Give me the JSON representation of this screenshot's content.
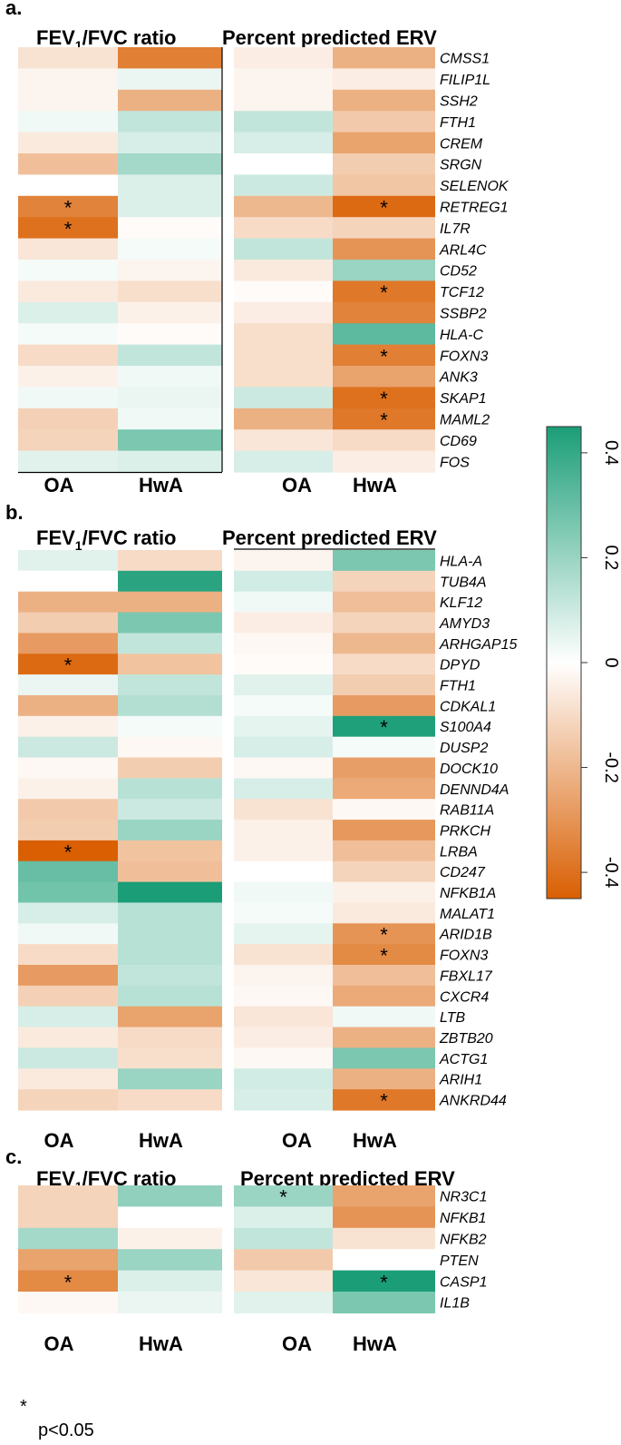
{
  "chart_data": {
    "type": "heatmap",
    "colorbar": {
      "min": -0.45,
      "max": 0.45,
      "ticks": [
        0.4,
        0.2,
        0,
        -0.2,
        -0.4
      ],
      "tick_labels": [
        "0.4",
        "0.2",
        "0",
        "-0.2",
        "-0.4"
      ],
      "neg_color": "#d95f02",
      "pos_color": "#1b9e77",
      "mid_color": "#ffffff"
    },
    "footnote": {
      "symbol": "*",
      "text": "p<0.05"
    },
    "panels": [
      {
        "label": "a.",
        "left_title": "FEV1/FVC ratio",
        "right_title": "Percent predicted ERV",
        "col_labels": [
          "OA",
          "HwA"
        ],
        "genes": [
          "CMSS1",
          "FILIP1L",
          "SSH2",
          "FTH1",
          "CREM",
          "SRGN",
          "SELENOK",
          "RETREG1",
          "IL7R",
          "ARL4C",
          "CD52",
          "TCF12",
          "SSBP2",
          "HLA-C",
          "FOXN3",
          "ANK3",
          "SKAP1",
          "MAML2",
          "CD69",
          "FOS"
        ],
        "fev_oa": [
          -0.08,
          -0.03,
          -0.03,
          0.03,
          -0.06,
          -0.18,
          0.0,
          -0.35,
          -0.4,
          -0.07,
          0.02,
          -0.06,
          0.07,
          0.02,
          -0.1,
          -0.04,
          0.03,
          -0.13,
          -0.12,
          0.06
        ],
        "fev_hwa": [
          -0.36,
          0.04,
          -0.22,
          0.12,
          0.08,
          0.18,
          0.07,
          0.07,
          -0.01,
          0.02,
          -0.03,
          -0.09,
          -0.04,
          -0.01,
          0.12,
          0.03,
          0.04,
          0.03,
          0.26,
          0.07
        ],
        "erv_oa": [
          -0.05,
          -0.03,
          -0.03,
          0.12,
          0.08,
          0.0,
          0.1,
          -0.2,
          -0.1,
          0.12,
          -0.06,
          -0.01,
          -0.05,
          -0.09,
          -0.09,
          -0.09,
          0.1,
          -0.22,
          -0.07,
          0.08
        ],
        "erv_hwa": [
          -0.22,
          -0.05,
          -0.22,
          -0.15,
          -0.26,
          -0.14,
          -0.16,
          -0.42,
          -0.12,
          -0.3,
          0.2,
          -0.38,
          -0.35,
          0.32,
          -0.36,
          -0.26,
          -0.4,
          -0.38,
          -0.1,
          -0.05
        ],
        "fev_oa_sig": [
          7,
          8
        ],
        "fev_hwa_sig": [],
        "erv_oa_sig": [],
        "erv_hwa_sig": [
          7,
          11,
          14,
          16,
          17
        ]
      },
      {
        "label": "b.",
        "left_title": "FEV1/FVC ratio",
        "right_title": "Percent predicted ERV",
        "col_labels": [
          "OA",
          "HwA"
        ],
        "genes": [
          "HLA-A",
          "TUB4A",
          "KLF12",
          "AMYD3",
          "ARHGAP15",
          "DPYD",
          "FTH1",
          "CDKAL1",
          "S100A4",
          "DUSP2",
          "DOCK10",
          "DENND4A",
          "RAB11A",
          "PRKCH",
          "LRBA",
          "CD247",
          "NFKB1A",
          "MALAT1",
          "ARID1B",
          "FOXN3",
          "FBXL17",
          "CXCR4",
          "LTB",
          "ZBTB20",
          "ACTG1",
          "ARIH1",
          "ANKRD44"
        ],
        "fev_oa": [
          0.06,
          0.0,
          -0.22,
          -0.14,
          -0.28,
          -0.42,
          0.04,
          -0.22,
          -0.04,
          0.1,
          -0.02,
          -0.04,
          -0.15,
          -0.14,
          -0.45,
          0.3,
          0.28,
          0.08,
          0.03,
          -0.1,
          -0.28,
          -0.13,
          0.08,
          -0.06,
          0.1,
          -0.06,
          -0.12
        ],
        "fev_hwa": [
          -0.1,
          0.42,
          -0.22,
          0.26,
          0.12,
          -0.17,
          0.12,
          0.15,
          0.02,
          -0.02,
          -0.14,
          0.14,
          0.1,
          0.2,
          -0.17,
          -0.18,
          0.45,
          0.14,
          0.14,
          0.14,
          0.12,
          0.14,
          -0.26,
          -0.1,
          -0.09,
          0.2,
          -0.1
        ],
        "erv_oa": [
          -0.03,
          0.09,
          0.03,
          -0.05,
          -0.02,
          -0.01,
          0.06,
          0.02,
          0.05,
          0.08,
          -0.02,
          0.08,
          -0.08,
          -0.04,
          -0.04,
          0.0,
          0.03,
          0.02,
          0.05,
          -0.08,
          -0.03,
          -0.02,
          -0.07,
          -0.05,
          -0.02,
          0.09,
          0.08
        ],
        "erv_hwa": [
          0.26,
          -0.12,
          -0.18,
          -0.12,
          -0.2,
          -0.1,
          -0.14,
          -0.28,
          0.44,
          0.02,
          -0.27,
          -0.24,
          -0.02,
          -0.29,
          -0.18,
          -0.12,
          -0.04,
          -0.06,
          -0.3,
          -0.33,
          -0.18,
          -0.24,
          0.03,
          -0.22,
          0.26,
          -0.22,
          -0.38
        ],
        "fev_oa_sig": [
          5,
          14
        ],
        "fev_hwa_sig": [],
        "erv_oa_sig": [],
        "erv_hwa_sig": [
          8,
          18,
          19,
          26
        ]
      },
      {
        "label": "c.",
        "left_title": "FEV1/FVC ratio",
        "right_title": "Percent predicted ERV",
        "col_labels": [
          "OA",
          "HwA"
        ],
        "genes": [
          "NR3C1",
          "NFKB1",
          "NFKB2",
          "PTEN",
          "CASP1",
          "IL1B"
        ],
        "fev_oa": [
          -0.12,
          -0.12,
          0.18,
          -0.26,
          -0.33,
          -0.02
        ],
        "fev_hwa": [
          0.22,
          0.0,
          -0.04,
          0.2,
          0.07,
          0.04
        ],
        "erv_oa": [
          0.2,
          0.07,
          0.12,
          -0.15,
          -0.07,
          0.06
        ],
        "erv_hwa": [
          -0.26,
          -0.3,
          -0.08,
          0.0,
          0.45,
          0.26
        ],
        "fev_oa_sig": [
          4
        ],
        "fev_hwa_sig": [],
        "erv_oa_sig": [
          0
        ],
        "erv_hwa_sig": [
          4
        ]
      }
    ]
  }
}
